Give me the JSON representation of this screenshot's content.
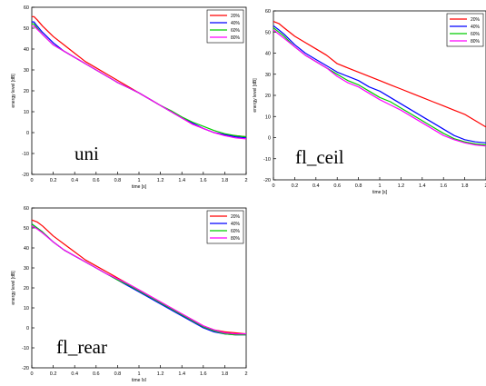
{
  "chart_data": [
    {
      "type": "line",
      "annotation": "uni",
      "xlabel": "time [s]",
      "ylabel": "energy level [dB]",
      "xlim": [
        0,
        2
      ],
      "ylim": [
        -20,
        60
      ],
      "xticks": [
        "0",
        "0.2",
        "0.4",
        "0.6",
        "0.8",
        "1",
        "1.2",
        "1.4",
        "1.6",
        "1.8",
        "2"
      ],
      "yticks": [
        "-20",
        "-10",
        "0",
        "10",
        "20",
        "30",
        "40",
        "50",
        "60"
      ],
      "legend_position": "top-right",
      "grid": false,
      "series": [
        {
          "name": "20%",
          "color": "#ff0000",
          "x": [
            0,
            0.02,
            0.05,
            0.1,
            0.2,
            0.3,
            0.4,
            0.5,
            0.6,
            0.7,
            0.8,
            0.9,
            1.0,
            1.1,
            1.2,
            1.3,
            1.4,
            1.5,
            1.6,
            1.7,
            1.8,
            1.9,
            2.0
          ],
          "y": [
            55.5,
            55.5,
            54,
            51,
            46,
            42,
            38,
            34,
            31,
            28,
            25,
            22,
            19,
            16,
            13,
            10,
            7,
            4,
            2,
            0,
            -1,
            -1.5,
            -2
          ]
        },
        {
          "name": "40%",
          "color": "#0000ff",
          "x": [
            0,
            0.02,
            0.05,
            0.1,
            0.2,
            0.3,
            0.4,
            0.5,
            0.6,
            0.7,
            0.8,
            0.9,
            1.0,
            1.1,
            1.2,
            1.3,
            1.4,
            1.5,
            1.6,
            1.7,
            1.8,
            1.9,
            2.0
          ],
          "y": [
            53,
            53,
            51,
            48,
            43,
            39,
            36,
            33,
            30,
            27,
            24,
            21.5,
            19,
            16,
            13,
            10,
            7,
            4.5,
            2,
            0,
            -1,
            -2,
            -2.5
          ]
        },
        {
          "name": "60%",
          "color": "#00cc00",
          "x": [
            0,
            0.02,
            0.05,
            0.1,
            0.2,
            0.3,
            0.4,
            0.5,
            0.6,
            0.7,
            0.8,
            0.9,
            1.0,
            1.1,
            1.2,
            1.3,
            1.4,
            1.5,
            1.6,
            1.7,
            1.8,
            1.9,
            2.0
          ],
          "y": [
            52,
            52,
            50,
            47,
            42,
            39,
            36,
            33,
            30,
            27,
            24,
            21.5,
            19,
            16,
            13,
            10.5,
            7.5,
            5,
            3,
            1,
            -0.5,
            -1.5,
            -2
          ]
        },
        {
          "name": "80%",
          "color": "#ff00ff",
          "x": [
            0,
            0.02,
            0.05,
            0.1,
            0.2,
            0.3,
            0.4,
            0.5,
            0.6,
            0.7,
            0.8,
            0.9,
            1.0,
            1.1,
            1.2,
            1.3,
            1.4,
            1.5,
            1.6,
            1.7,
            1.8,
            1.9,
            2.0
          ],
          "y": [
            51,
            51,
            49.5,
            47,
            42,
            39,
            36,
            33,
            30,
            27,
            24,
            21.5,
            19,
            16,
            13,
            10,
            7,
            4,
            2,
            0,
            -1.5,
            -2.5,
            -3
          ]
        }
      ]
    },
    {
      "type": "line",
      "annotation": "fl_ceil",
      "xlabel": "time [s]",
      "ylabel": "energy level [dB]",
      "xlim": [
        0,
        2
      ],
      "ylim": [
        -20,
        60
      ],
      "xticks": [
        "0",
        "0.2",
        "0.4",
        "0.6",
        "0.8",
        "1",
        "1.2",
        "1.4",
        "1.6",
        "1.8",
        "2"
      ],
      "yticks": [
        "-20",
        "-10",
        "0",
        "10",
        "20",
        "30",
        "40",
        "50",
        "60"
      ],
      "legend_position": "top-right",
      "grid": false,
      "series": [
        {
          "name": "20%",
          "color": "#ff0000",
          "x": [
            0,
            0.05,
            0.1,
            0.2,
            0.3,
            0.4,
            0.5,
            0.6,
            0.7,
            0.8,
            0.9,
            1.0,
            1.1,
            1.2,
            1.3,
            1.4,
            1.5,
            1.6,
            1.7,
            1.8,
            1.9,
            2.0
          ],
          "y": [
            55,
            54,
            52,
            48,
            45,
            42,
            39,
            35,
            33,
            31,
            29,
            27,
            25,
            23,
            21,
            19,
            17,
            15,
            13,
            11,
            8,
            5
          ]
        },
        {
          "name": "40%",
          "color": "#0000ff",
          "x": [
            0,
            0.05,
            0.1,
            0.2,
            0.3,
            0.4,
            0.5,
            0.6,
            0.7,
            0.8,
            0.9,
            1.0,
            1.1,
            1.2,
            1.3,
            1.4,
            1.5,
            1.6,
            1.7,
            1.8,
            1.9,
            2.0
          ],
          "y": [
            53,
            51,
            49,
            44,
            40,
            37,
            34,
            31,
            29,
            27,
            24,
            22,
            19,
            16,
            13,
            10,
            7,
            4,
            1,
            -1,
            -2,
            -2.5
          ]
        },
        {
          "name": "60%",
          "color": "#00cc00",
          "x": [
            0,
            0.05,
            0.1,
            0.2,
            0.3,
            0.4,
            0.5,
            0.6,
            0.7,
            0.8,
            0.9,
            1.0,
            1.1,
            1.2,
            1.3,
            1.4,
            1.5,
            1.6,
            1.7,
            1.8,
            1.9,
            2.0
          ],
          "y": [
            52,
            50,
            48,
            43,
            39,
            36,
            33,
            30,
            27,
            25,
            22,
            19,
            17,
            14,
            11,
            8,
            5,
            2,
            -0.5,
            -2,
            -3,
            -3.5
          ]
        },
        {
          "name": "80%",
          "color": "#ff00ff",
          "x": [
            0,
            0.05,
            0.1,
            0.2,
            0.3,
            0.4,
            0.5,
            0.6,
            0.7,
            0.8,
            0.9,
            1.0,
            1.1,
            1.2,
            1.3,
            1.4,
            1.5,
            1.6,
            1.7,
            1.8,
            1.9,
            2.0
          ],
          "y": [
            51,
            49,
            47,
            43,
            39,
            36,
            33,
            29,
            26,
            24,
            21,
            18,
            15.5,
            13,
            10,
            7,
            4,
            1,
            -1,
            -2.5,
            -3.5,
            -4
          ]
        }
      ]
    },
    {
      "type": "line",
      "annotation": "fl_rear",
      "xlabel": "time [s]",
      "ylabel": "energy level [dB]",
      "xlim": [
        0,
        2
      ],
      "ylim": [
        -20,
        60
      ],
      "xticks": [
        "0",
        "0.2",
        "0.4",
        "0.6",
        "0.8",
        "1",
        "1.2",
        "1.4",
        "1.6",
        "1.8",
        "2"
      ],
      "yticks": [
        "-20",
        "-10",
        "0",
        "10",
        "20",
        "30",
        "40",
        "50",
        "60"
      ],
      "legend_position": "top-right",
      "grid": false,
      "series": [
        {
          "name": "20%",
          "color": "#ff0000",
          "x": [
            0,
            0.05,
            0.1,
            0.2,
            0.3,
            0.4,
            0.5,
            0.6,
            0.7,
            0.8,
            0.9,
            1.0,
            1.1,
            1.2,
            1.3,
            1.4,
            1.5,
            1.6,
            1.7,
            1.8,
            1.9,
            2.0
          ],
          "y": [
            54,
            53,
            51,
            46,
            42,
            38,
            34,
            31,
            28,
            25,
            22,
            19,
            16,
            13,
            10,
            7,
            4,
            1,
            -1,
            -2,
            -2.5,
            -3
          ]
        },
        {
          "name": "40%",
          "color": "#0000ff",
          "x": [
            0,
            0.05,
            0.1,
            0.2,
            0.3,
            0.4,
            0.5,
            0.6,
            0.7,
            0.8,
            0.9,
            1.0,
            1.1,
            1.2,
            1.3,
            1.4,
            1.5,
            1.6,
            1.7,
            1.8,
            1.9,
            2.0
          ],
          "y": [
            52,
            50,
            48,
            43,
            39,
            36,
            33,
            30,
            27,
            24,
            21,
            18,
            15,
            12,
            9,
            6,
            3,
            0,
            -2,
            -3,
            -3.5,
            -3.5
          ]
        },
        {
          "name": "60%",
          "color": "#00cc00",
          "x": [
            0,
            0.05,
            0.1,
            0.2,
            0.3,
            0.4,
            0.5,
            0.6,
            0.7,
            0.8,
            0.9,
            1.0,
            1.1,
            1.2,
            1.3,
            1.4,
            1.5,
            1.6,
            1.7,
            1.8,
            1.9,
            2.0
          ],
          "y": [
            52,
            50,
            48,
            43,
            39,
            36,
            33,
            30,
            27,
            24,
            21.5,
            18.5,
            15.5,
            12.5,
            9.5,
            6.5,
            3.5,
            0.5,
            -1.5,
            -3,
            -3.5,
            -3.5
          ]
        },
        {
          "name": "80%",
          "color": "#ff00ff",
          "x": [
            0,
            0.05,
            0.1,
            0.2,
            0.3,
            0.4,
            0.5,
            0.6,
            0.7,
            0.8,
            0.9,
            1.0,
            1.1,
            1.2,
            1.3,
            1.4,
            1.5,
            1.6,
            1.7,
            1.8,
            1.9,
            2.0
          ],
          "y": [
            51,
            49.5,
            47.5,
            43,
            39,
            36,
            33,
            30,
            27,
            24.5,
            22,
            19,
            16,
            13,
            10,
            7,
            4,
            1,
            -1,
            -2.5,
            -3,
            -3
          ]
        }
      ]
    }
  ]
}
